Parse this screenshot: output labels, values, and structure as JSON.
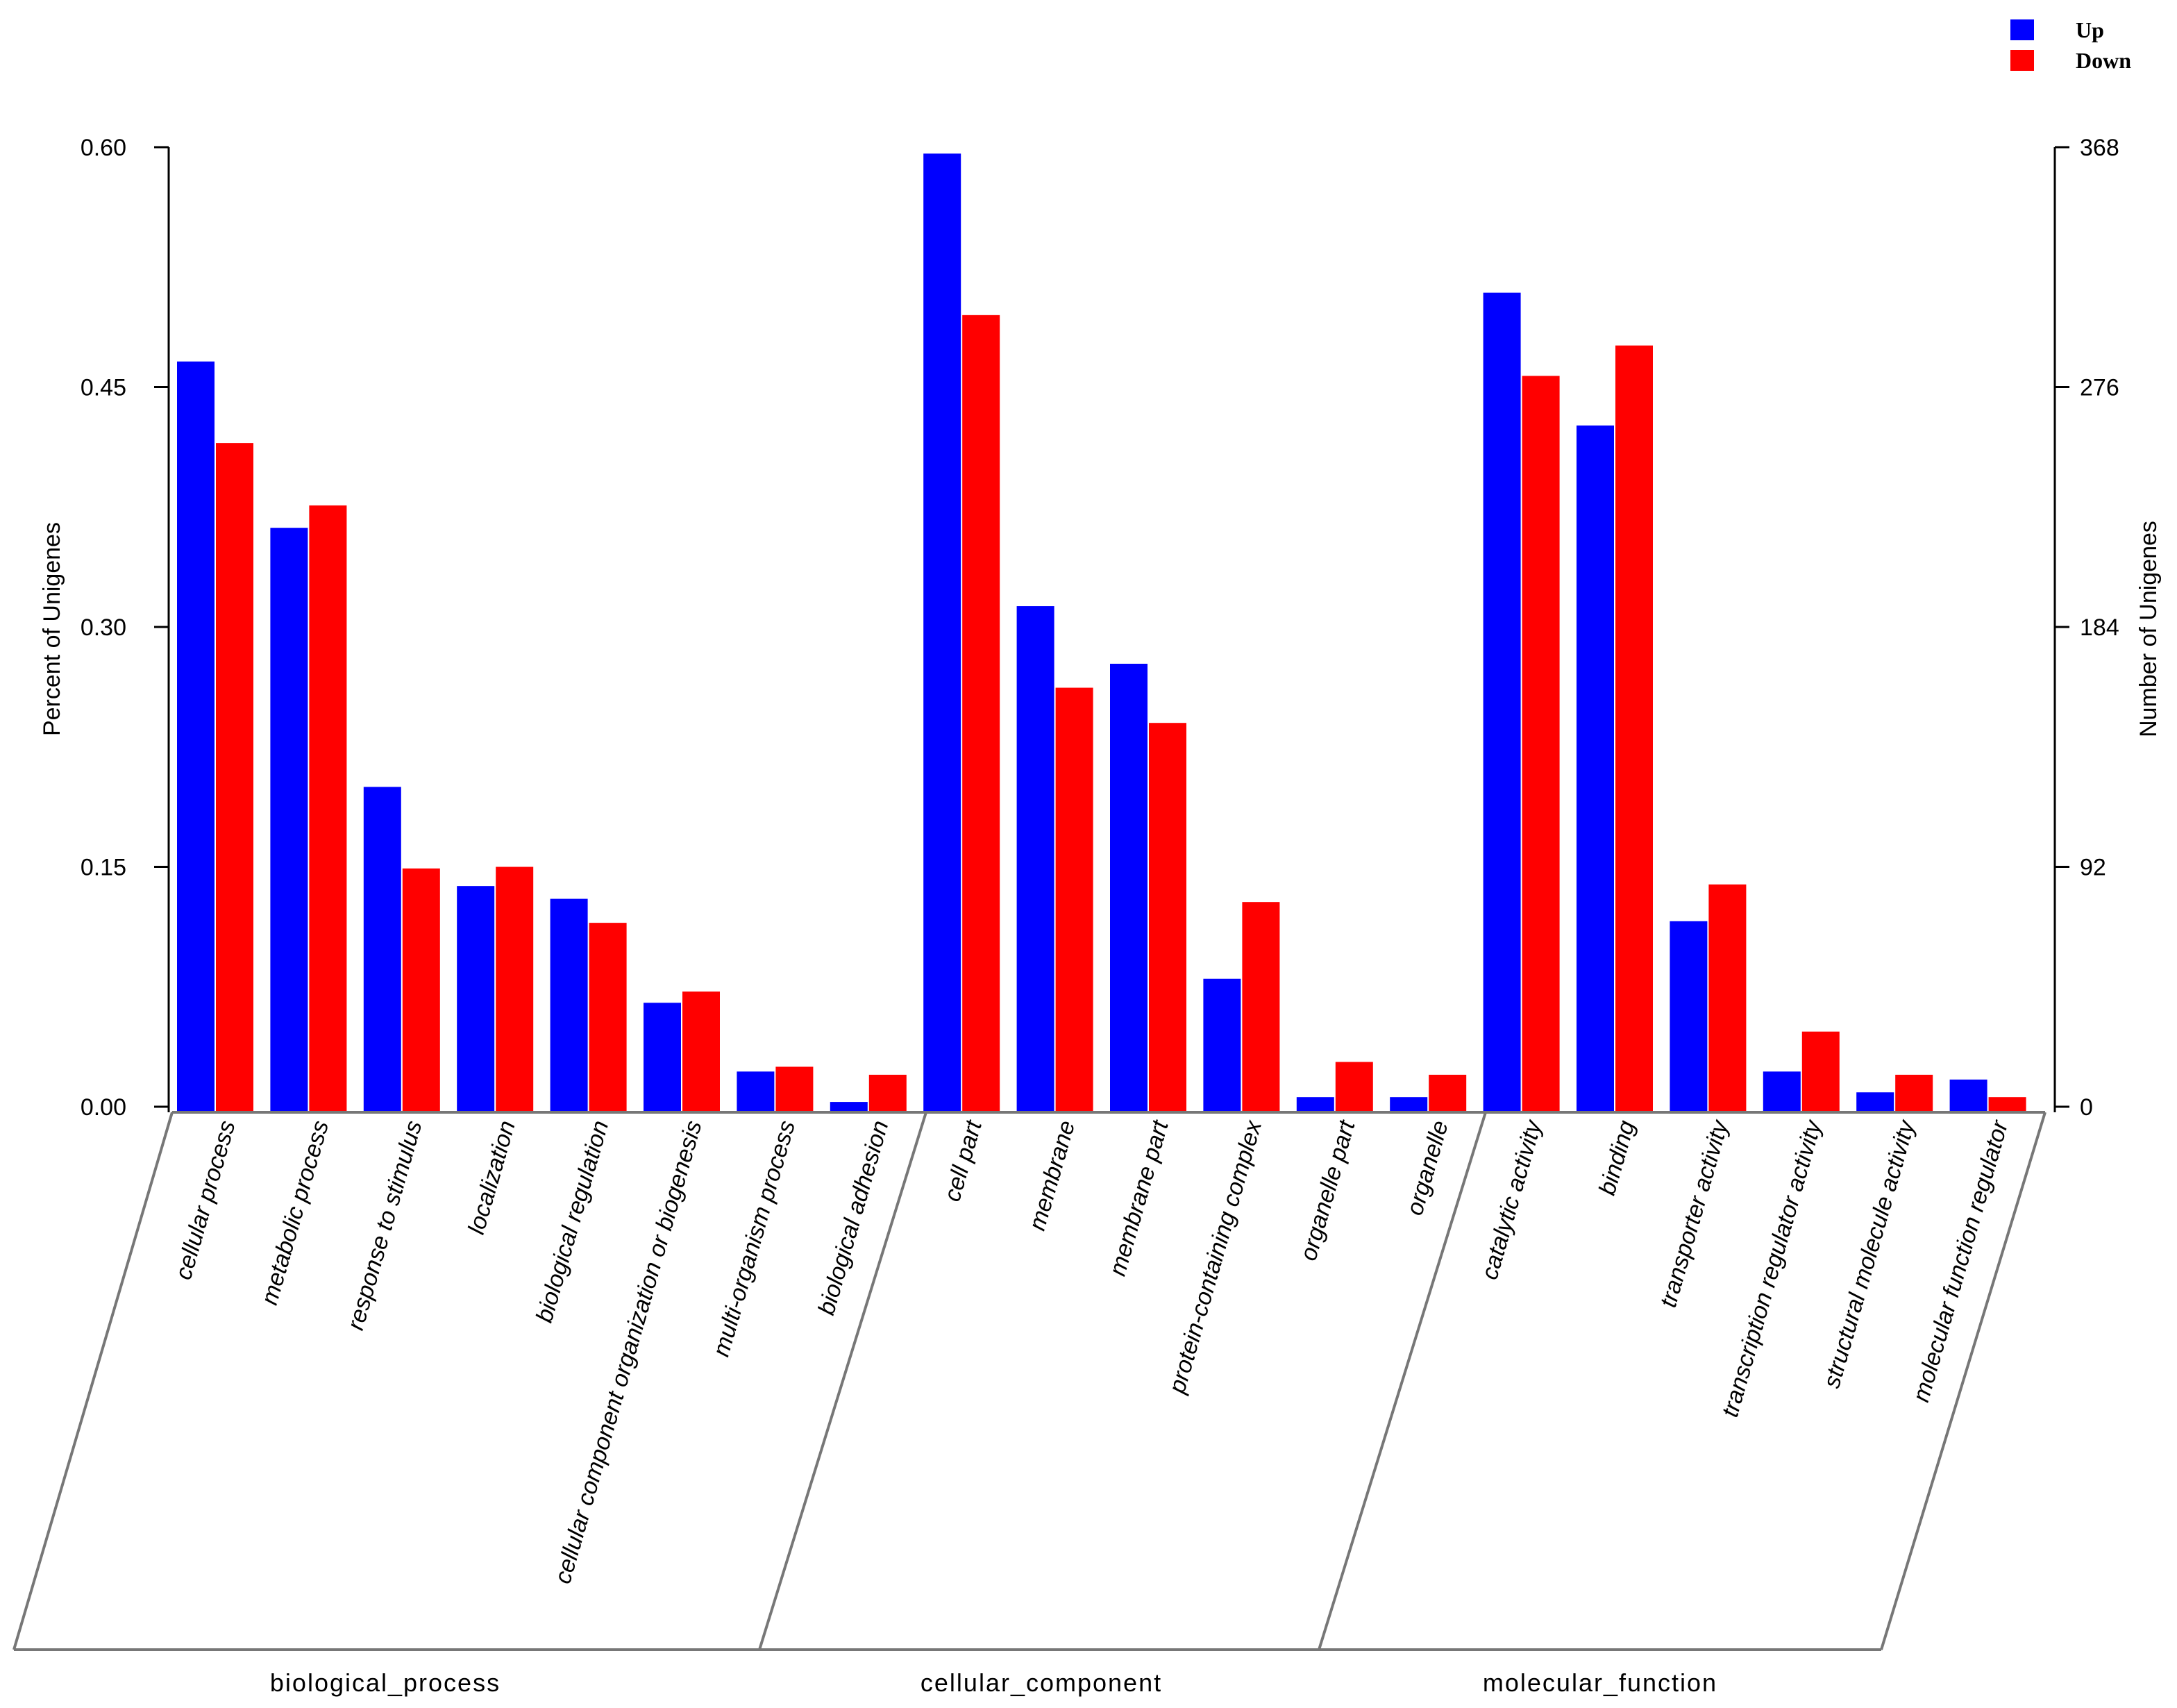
{
  "chart_data": {
    "type": "bar",
    "left_axis": {
      "label": "Percent of Unigenes",
      "ylim": [
        0,
        0.6
      ],
      "ticks": [
        "0.00",
        "0.15",
        "0.30",
        "0.45",
        "0.60"
      ]
    },
    "right_axis": {
      "label": "Number of Unigenes",
      "ylim": [
        0,
        368
      ],
      "ticks": [
        "0",
        "92",
        "184",
        "276",
        "368"
      ]
    },
    "legend": {
      "position": "top-right",
      "entries": [
        {
          "name": "Up",
          "color": "#0000ff"
        },
        {
          "name": "Down",
          "color": "#ff0000"
        }
      ]
    },
    "groups": [
      {
        "name": "biological_process",
        "categories": [
          "cellular process",
          "metabolic process",
          "response to stimulus",
          "localization",
          "biological regulation",
          "cellular component organization or biogenesis",
          "multi-organism process",
          "biological adhesion"
        ]
      },
      {
        "name": "cellular_component",
        "categories": [
          "cell part",
          "membrane",
          "membrane part",
          "protein-containing complex",
          "organelle part",
          "organelle"
        ]
      },
      {
        "name": "molecular_function",
        "categories": [
          "catalytic activity",
          "binding",
          "transporter activity",
          "transcription regulator activity",
          "structural molecule activity",
          "molecular function regulator"
        ]
      }
    ],
    "series": [
      {
        "name": "Up",
        "color": "#0000ff",
        "values": [
          0.466,
          0.362,
          0.2,
          0.138,
          0.13,
          0.065,
          0.022,
          0.003,
          0.596,
          0.313,
          0.277,
          0.08,
          0.006,
          0.006,
          0.509,
          0.426,
          0.116,
          0.022,
          0.009,
          0.017
        ]
      },
      {
        "name": "Down",
        "color": "#ff0000",
        "values": [
          0.415,
          0.376,
          0.149,
          0.15,
          0.115,
          0.072,
          0.025,
          0.02,
          0.495,
          0.262,
          0.24,
          0.128,
          0.028,
          0.02,
          0.457,
          0.476,
          0.139,
          0.047,
          0.02,
          0.006
        ]
      }
    ]
  }
}
